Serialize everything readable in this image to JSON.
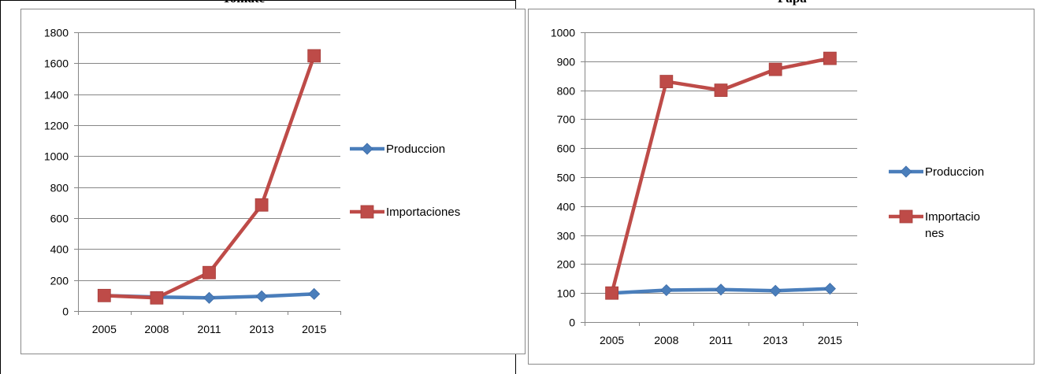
{
  "charts": [
    {
      "title": "Tomate",
      "chart_data": {
        "type": "line",
        "categories": [
          "2005",
          "2008",
          "2011",
          "2013",
          "2015"
        ],
        "ylim": [
          0,
          1800
        ],
        "yticks": [
          0,
          200,
          400,
          600,
          800,
          1000,
          1200,
          1400,
          1600,
          1800
        ],
        "grid": true,
        "legend_position": "right",
        "series": [
          {
            "name": "Produccion",
            "color": "#4a7ebb",
            "marker": "diamond",
            "values": [
              100,
              90,
              85,
              95,
              110
            ]
          },
          {
            "name": "Importaciones",
            "color": "#be4b48",
            "marker": "square",
            "values": [
              100,
              85,
              248,
              685,
              1648
            ]
          }
        ]
      }
    },
    {
      "title": "Papa",
      "chart_data": {
        "type": "line",
        "categories": [
          "2005",
          "2008",
          "2011",
          "2013",
          "2015"
        ],
        "ylim": [
          0,
          1000
        ],
        "yticks": [
          0,
          100,
          200,
          300,
          400,
          500,
          600,
          700,
          800,
          900,
          1000
        ],
        "grid": true,
        "legend_position": "right",
        "series": [
          {
            "name": "Produccion",
            "color": "#4a7ebb",
            "marker": "diamond",
            "values": [
              100,
              110,
              112,
              108,
              115
            ]
          },
          {
            "name": "Importaciones",
            "color": "#be4b48",
            "marker": "square",
            "values": [
              100,
              830,
              800,
              872,
              910
            ]
          }
        ]
      }
    }
  ]
}
